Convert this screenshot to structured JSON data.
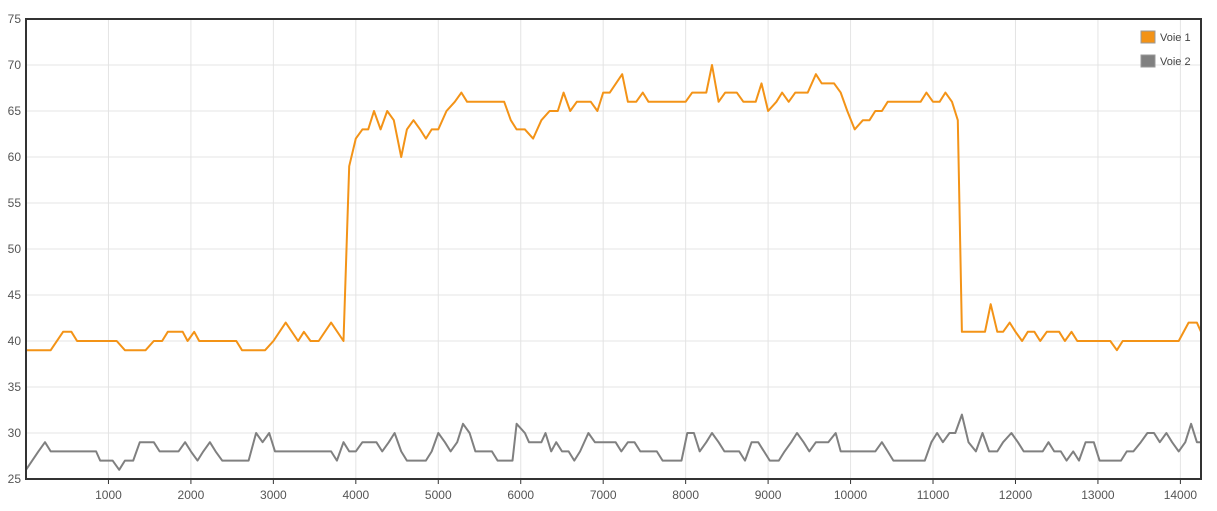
{
  "chart_data": {
    "type": "line",
    "xlabel": "",
    "ylabel": "",
    "xlim": [
      0,
      14250
    ],
    "ylim": [
      25,
      75
    ],
    "x_ticks": [
      1000,
      2000,
      3000,
      4000,
      5000,
      6000,
      7000,
      8000,
      9000,
      10000,
      11000,
      12000,
      13000,
      14000
    ],
    "y_ticks": [
      25,
      30,
      35,
      40,
      45,
      50,
      55,
      60,
      65,
      70,
      75
    ],
    "grid": true,
    "legend_position": "top-right",
    "series": [
      {
        "name": "Voie 1",
        "color": "#F39317",
        "points": [
          [
            0,
            39
          ],
          [
            300,
            39
          ],
          [
            450,
            41
          ],
          [
            550,
            41
          ],
          [
            620,
            40
          ],
          [
            1100,
            40
          ],
          [
            1200,
            39
          ],
          [
            1450,
            39
          ],
          [
            1550,
            40
          ],
          [
            1650,
            40
          ],
          [
            1720,
            41
          ],
          [
            1900,
            41
          ],
          [
            1960,
            40
          ],
          [
            2040,
            41
          ],
          [
            2100,
            40
          ],
          [
            2550,
            40
          ],
          [
            2620,
            39
          ],
          [
            2900,
            39
          ],
          [
            3000,
            40
          ],
          [
            3150,
            42
          ],
          [
            3300,
            40
          ],
          [
            3370,
            41
          ],
          [
            3450,
            40
          ],
          [
            3550,
            40
          ],
          [
            3700,
            42
          ],
          [
            3850,
            40
          ],
          [
            3920,
            59
          ],
          [
            4000,
            62
          ],
          [
            4080,
            63
          ],
          [
            4150,
            63
          ],
          [
            4220,
            65
          ],
          [
            4300,
            63
          ],
          [
            4380,
            65
          ],
          [
            4460,
            64
          ],
          [
            4550,
            60
          ],
          [
            4620,
            63
          ],
          [
            4700,
            64
          ],
          [
            4780,
            63
          ],
          [
            4850,
            62
          ],
          [
            4920,
            63
          ],
          [
            5000,
            63
          ],
          [
            5100,
            65
          ],
          [
            5200,
            66
          ],
          [
            5280,
            67
          ],
          [
            5350,
            66
          ],
          [
            5800,
            66
          ],
          [
            5880,
            64
          ],
          [
            5950,
            63
          ],
          [
            6050,
            63
          ],
          [
            6150,
            62
          ],
          [
            6250,
            64
          ],
          [
            6350,
            65
          ],
          [
            6450,
            65
          ],
          [
            6520,
            67
          ],
          [
            6600,
            65
          ],
          [
            6680,
            66
          ],
          [
            6850,
            66
          ],
          [
            6930,
            65
          ],
          [
            7000,
            67
          ],
          [
            7080,
            67
          ],
          [
            7230,
            69
          ],
          [
            7300,
            66
          ],
          [
            7400,
            66
          ],
          [
            7480,
            67
          ],
          [
            7550,
            66
          ],
          [
            8000,
            66
          ],
          [
            8080,
            67
          ],
          [
            8250,
            67
          ],
          [
            8320,
            70
          ],
          [
            8400,
            66
          ],
          [
            8480,
            67
          ],
          [
            8620,
            67
          ],
          [
            8700,
            66
          ],
          [
            8850,
            66
          ],
          [
            8920,
            68
          ],
          [
            9000,
            65
          ],
          [
            9100,
            66
          ],
          [
            9170,
            67
          ],
          [
            9250,
            66
          ],
          [
            9330,
            67
          ],
          [
            9480,
            67
          ],
          [
            9580,
            69
          ],
          [
            9650,
            68
          ],
          [
            9800,
            68
          ],
          [
            9880,
            67
          ],
          [
            9960,
            65
          ],
          [
            10050,
            63
          ],
          [
            10150,
            64
          ],
          [
            10230,
            64
          ],
          [
            10300,
            65
          ],
          [
            10380,
            65
          ],
          [
            10450,
            66
          ],
          [
            10850,
            66
          ],
          [
            10920,
            67
          ],
          [
            11000,
            66
          ],
          [
            11080,
            66
          ],
          [
            11150,
            67
          ],
          [
            11230,
            66
          ],
          [
            11300,
            64
          ],
          [
            11350,
            41
          ],
          [
            11630,
            41
          ],
          [
            11700,
            44
          ],
          [
            11780,
            41
          ],
          [
            11850,
            41
          ],
          [
            11930,
            42
          ],
          [
            12000,
            41
          ],
          [
            12080,
            40
          ],
          [
            12150,
            41
          ],
          [
            12230,
            41
          ],
          [
            12300,
            40
          ],
          [
            12380,
            41
          ],
          [
            12530,
            41
          ],
          [
            12600,
            40
          ],
          [
            12680,
            41
          ],
          [
            12750,
            40
          ],
          [
            13150,
            40
          ],
          [
            13230,
            39
          ],
          [
            13300,
            40
          ],
          [
            13980,
            40
          ],
          [
            14100,
            42
          ],
          [
            14200,
            42
          ],
          [
            14250,
            41
          ]
        ]
      },
      {
        "name": "Voie 2",
        "color": "#808080",
        "points": [
          [
            0,
            26
          ],
          [
            150,
            28
          ],
          [
            230,
            29
          ],
          [
            300,
            28
          ],
          [
            850,
            28
          ],
          [
            900,
            27
          ],
          [
            1050,
            27
          ],
          [
            1130,
            26
          ],
          [
            1200,
            27
          ],
          [
            1300,
            27
          ],
          [
            1380,
            29
          ],
          [
            1550,
            29
          ],
          [
            1620,
            28
          ],
          [
            1850,
            28
          ],
          [
            1930,
            29
          ],
          [
            2000,
            28
          ],
          [
            2080,
            27
          ],
          [
            2150,
            28
          ],
          [
            2230,
            29
          ],
          [
            2300,
            28
          ],
          [
            2380,
            27
          ],
          [
            2700,
            27
          ],
          [
            2790,
            30
          ],
          [
            2870,
            29
          ],
          [
            2950,
            30
          ],
          [
            3020,
            28
          ],
          [
            3700,
            28
          ],
          [
            3770,
            27
          ],
          [
            3850,
            29
          ],
          [
            3920,
            28
          ],
          [
            4000,
            28
          ],
          [
            4080,
            29
          ],
          [
            4250,
            29
          ],
          [
            4320,
            28
          ],
          [
            4400,
            29
          ],
          [
            4470,
            30
          ],
          [
            4550,
            28
          ],
          [
            4620,
            27
          ],
          [
            4850,
            27
          ],
          [
            4920,
            28
          ],
          [
            5000,
            30
          ],
          [
            5080,
            29
          ],
          [
            5150,
            28
          ],
          [
            5230,
            29
          ],
          [
            5300,
            31
          ],
          [
            5380,
            30
          ],
          [
            5450,
            28
          ],
          [
            5650,
            28
          ],
          [
            5720,
            27
          ],
          [
            5900,
            27
          ],
          [
            5950,
            31
          ],
          [
            6050,
            30
          ],
          [
            6100,
            29
          ],
          [
            6250,
            29
          ],
          [
            6300,
            30
          ],
          [
            6370,
            28
          ],
          [
            6430,
            29
          ],
          [
            6500,
            28
          ],
          [
            6580,
            28
          ],
          [
            6650,
            27
          ],
          [
            6720,
            28
          ],
          [
            6820,
            30
          ],
          [
            6900,
            29
          ],
          [
            7150,
            29
          ],
          [
            7220,
            28
          ],
          [
            7300,
            29
          ],
          [
            7380,
            29
          ],
          [
            7450,
            28
          ],
          [
            7650,
            28
          ],
          [
            7720,
            27
          ],
          [
            7950,
            27
          ],
          [
            8020,
            30
          ],
          [
            8100,
            30
          ],
          [
            8170,
            28
          ],
          [
            8250,
            29
          ],
          [
            8320,
            30
          ],
          [
            8400,
            29
          ],
          [
            8470,
            28
          ],
          [
            8650,
            28
          ],
          [
            8720,
            27
          ],
          [
            8800,
            29
          ],
          [
            8880,
            29
          ],
          [
            8950,
            28
          ],
          [
            9020,
            27
          ],
          [
            9130,
            27
          ],
          [
            9200,
            28
          ],
          [
            9280,
            29
          ],
          [
            9350,
            30
          ],
          [
            9430,
            29
          ],
          [
            9500,
            28
          ],
          [
            9580,
            29
          ],
          [
            9730,
            29
          ],
          [
            9820,
            30
          ],
          [
            9880,
            28
          ],
          [
            10300,
            28
          ],
          [
            10380,
            29
          ],
          [
            10450,
            28
          ],
          [
            10520,
            27
          ],
          [
            10900,
            27
          ],
          [
            10980,
            29
          ],
          [
            11050,
            30
          ],
          [
            11120,
            29
          ],
          [
            11200,
            30
          ],
          [
            11270,
            30
          ],
          [
            11350,
            32
          ],
          [
            11430,
            29
          ],
          [
            11520,
            28
          ],
          [
            11600,
            30
          ],
          [
            11680,
            28
          ],
          [
            11780,
            28
          ],
          [
            11850,
            29
          ],
          [
            11950,
            30
          ],
          [
            12030,
            29
          ],
          [
            12100,
            28
          ],
          [
            12330,
            28
          ],
          [
            12400,
            29
          ],
          [
            12470,
            28
          ],
          [
            12550,
            28
          ],
          [
            12620,
            27
          ],
          [
            12700,
            28
          ],
          [
            12770,
            27
          ],
          [
            12850,
            29
          ],
          [
            12950,
            29
          ],
          [
            13020,
            27
          ],
          [
            13280,
            27
          ],
          [
            13350,
            28
          ],
          [
            13430,
            28
          ],
          [
            13520,
            29
          ],
          [
            13600,
            30
          ],
          [
            13680,
            30
          ],
          [
            13750,
            29
          ],
          [
            13830,
            30
          ],
          [
            13900,
            29
          ],
          [
            13980,
            28
          ],
          [
            14060,
            29
          ],
          [
            14130,
            31
          ],
          [
            14200,
            29
          ],
          [
            14250,
            29
          ]
        ]
      }
    ]
  }
}
